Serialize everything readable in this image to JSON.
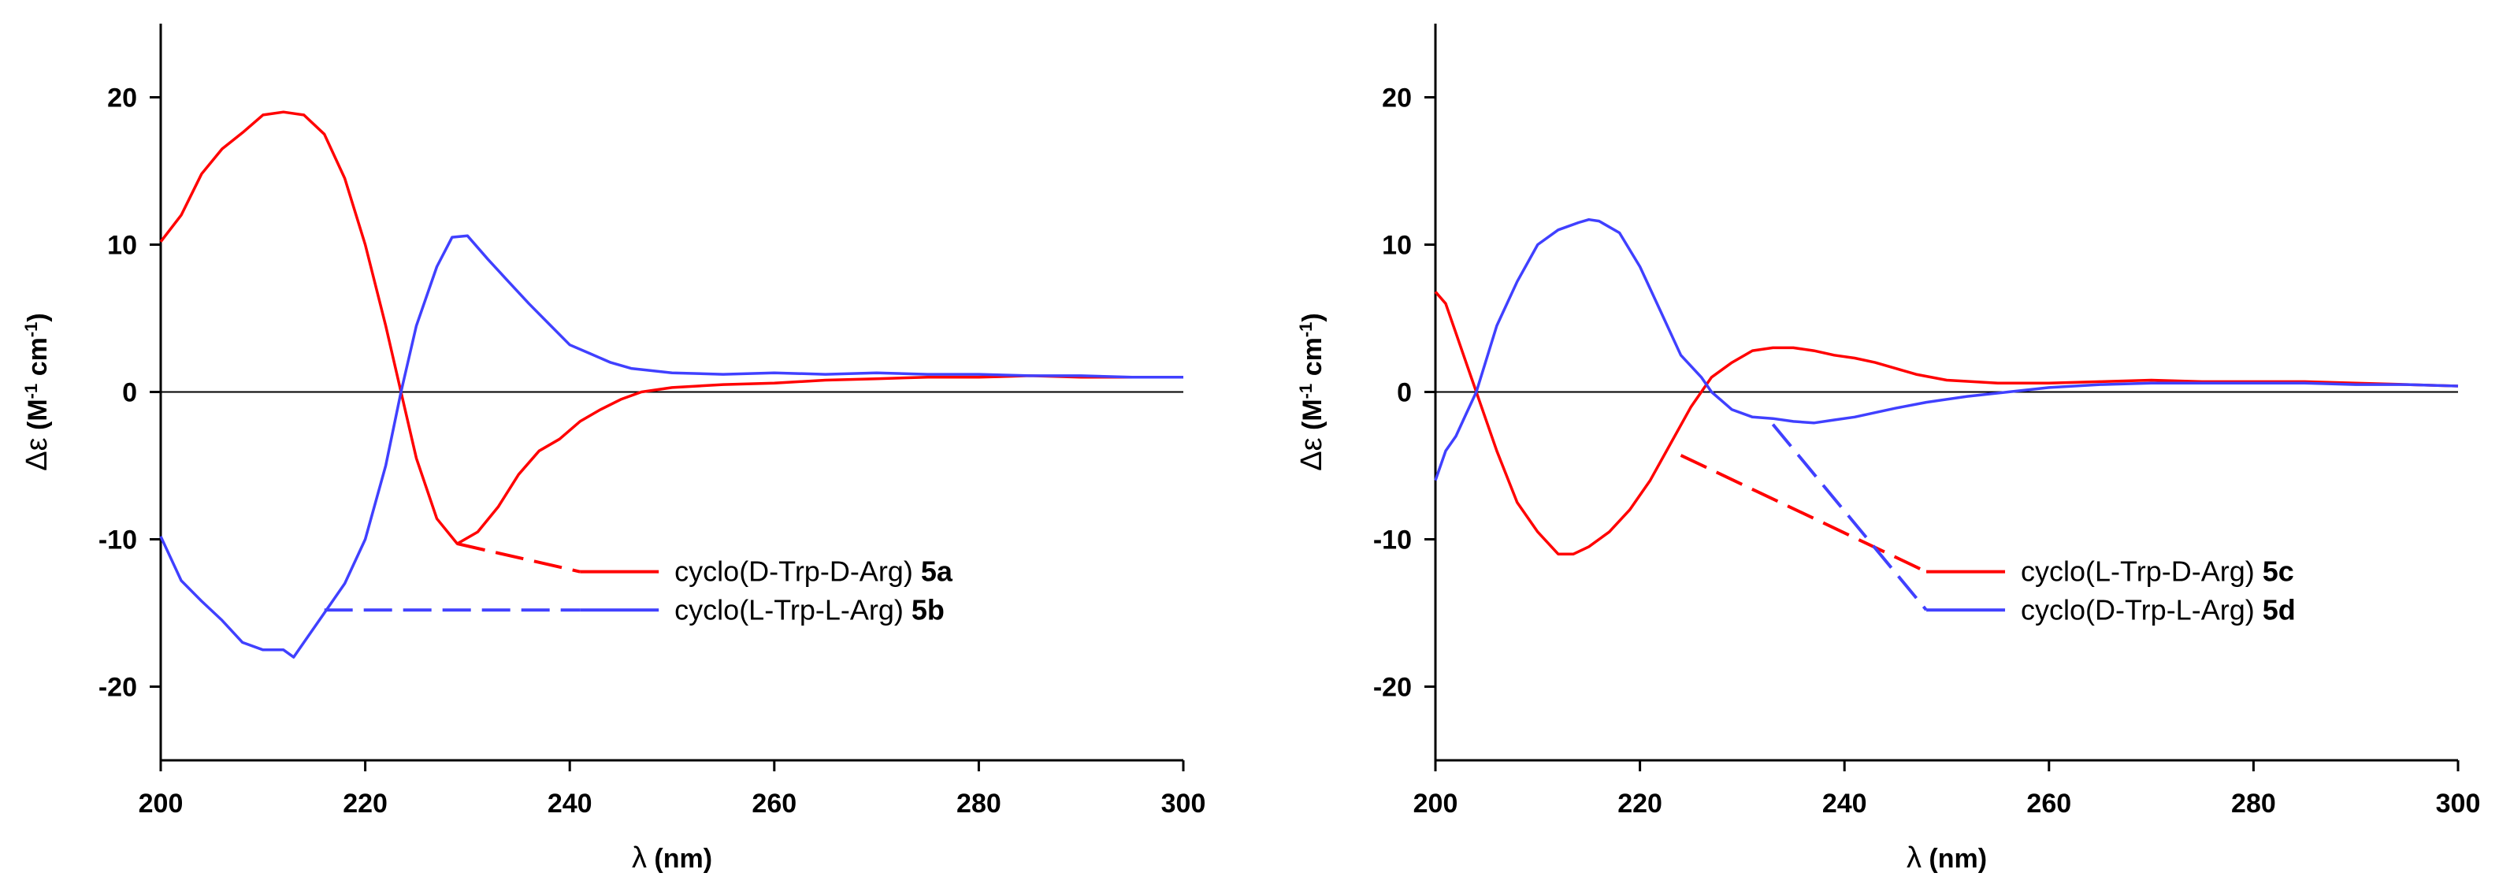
{
  "colors": {
    "red": "#ff0000",
    "blue": "#4040ff",
    "axis": "#000000",
    "background": "#ffffff"
  },
  "chart_data": [
    {
      "type": "line",
      "title": "",
      "xlabel": {
        "symbol": "λ",
        "unit": "(nm)"
      },
      "ylabel": {
        "symbol": "Δε",
        "unit_prefix": "(M",
        "exp1": "-1",
        "unit_mid": " cm",
        "exp2": "-1",
        "unit_suffix": ")"
      },
      "xlim": [
        200,
        300
      ],
      "ylim": [
        -25,
        25
      ],
      "xticks": [
        200,
        220,
        240,
        260,
        280,
        300
      ],
      "yticks": [
        -20,
        -10,
        0,
        10,
        20
      ],
      "xtick_labels": [
        "200",
        "220",
        "240",
        "260",
        "280",
        "300"
      ],
      "ytick_labels": [
        "-20",
        "-10",
        "0",
        "10",
        "20"
      ],
      "zero_line": true,
      "series": [
        {
          "name": "cyclo(D-Trp-D-Arg)",
          "compound": "5a",
          "color": "#ff0000",
          "x": [
            200,
            202,
            204,
            206,
            208,
            210,
            212,
            214,
            216,
            218,
            220,
            222,
            223.5,
            225,
            227,
            229,
            231,
            233,
            235,
            237,
            239,
            241,
            243,
            245,
            247,
            250,
            255,
            260,
            265,
            270,
            275,
            280,
            285,
            290,
            295,
            300
          ],
          "y": [
            10.2,
            12,
            14.8,
            16.5,
            17.6,
            18.8,
            19.0,
            18.8,
            17.5,
            14.5,
            10,
            4.5,
            0,
            -4.5,
            -8.6,
            -10.3,
            -9.5,
            -7.8,
            -5.6,
            -4,
            -3.2,
            -2,
            -1.2,
            -0.5,
            0,
            0.3,
            0.5,
            0.6,
            0.8,
            0.9,
            1.0,
            1.0,
            1.1,
            1.0,
            1.0,
            1.0
          ]
        },
        {
          "name": "cyclo(L-Trp-L-Arg)",
          "compound": "5b",
          "color": "#4040ff",
          "x": [
            200,
            202,
            204,
            206,
            208,
            210,
            212,
            213,
            214,
            216,
            218,
            220,
            222,
            223.5,
            225,
            227,
            228.5,
            230,
            232,
            234,
            236,
            238,
            240,
            242,
            244,
            246,
            250,
            255,
            260,
            265,
            270,
            275,
            280,
            285,
            290,
            295,
            300
          ],
          "y": [
            -9.8,
            -12.8,
            -14.2,
            -15.5,
            -17,
            -17.5,
            -17.5,
            -18,
            -17,
            -15,
            -13,
            -10,
            -5,
            0,
            4.5,
            8.5,
            10.5,
            10.6,
            9,
            7.5,
            6,
            4.6,
            3.2,
            2.6,
            2.0,
            1.6,
            1.3,
            1.2,
            1.3,
            1.2,
            1.3,
            1.2,
            1.2,
            1.1,
            1.1,
            1.0,
            1.0
          ]
        }
      ],
      "legend": [
        {
          "label": "cyclo(D-Trp-D-Arg)",
          "tag": "5a",
          "color": "#ff0000",
          "leader_from": [
            229,
            -10.3
          ],
          "leader_to": [
            241,
            -12.2
          ]
        },
        {
          "label": "cyclo(L-Trp-L-Arg)",
          "tag": "5b",
          "color": "#4040ff",
          "leader_from": [
            216,
            -14.8
          ],
          "leader_to": [
            241,
            -14.8
          ]
        }
      ]
    },
    {
      "type": "line",
      "title": "",
      "xlabel": {
        "symbol": "λ",
        "unit": "(nm)"
      },
      "ylabel": {
        "symbol": "Δε",
        "unit_prefix": "(M",
        "exp1": "-1",
        "unit_mid": " cm",
        "exp2": "-1",
        "unit_suffix": ")"
      },
      "xlim": [
        200,
        300
      ],
      "ylim": [
        -25,
        25
      ],
      "xticks": [
        200,
        220,
        240,
        260,
        280,
        300
      ],
      "yticks": [
        -20,
        -10,
        0,
        10,
        20
      ],
      "xtick_labels": [
        "200",
        "220",
        "240",
        "260",
        "280",
        "300"
      ],
      "ytick_labels": [
        "-20",
        "-10",
        "0",
        "10",
        "20"
      ],
      "zero_line": true,
      "series": [
        {
          "name": "cyclo(L-Trp-D-Arg)",
          "compound": "5c",
          "color": "#ff0000",
          "x": [
            200,
            201,
            202,
            203,
            204,
            206,
            208,
            210,
            212,
            213.5,
            215,
            217,
            219,
            221,
            223,
            225,
            227,
            229,
            231,
            233,
            235,
            237,
            239,
            241,
            243,
            245,
            247,
            250,
            255,
            260,
            265,
            270,
            275,
            280,
            285,
            290,
            295,
            300
          ],
          "y": [
            6.8,
            6,
            4,
            2,
            0,
            -4,
            -7.5,
            -9.5,
            -11,
            -11,
            -10.5,
            -9.5,
            -8,
            -6,
            -3.5,
            -1,
            1,
            2,
            2.8,
            3.0,
            3.0,
            2.8,
            2.5,
            2.3,
            2.0,
            1.6,
            1.2,
            0.8,
            0.6,
            0.6,
            0.7,
            0.8,
            0.7,
            0.7,
            0.7,
            0.6,
            0.5,
            0.4
          ]
        },
        {
          "name": "cyclo(D-Trp-L-Arg)",
          "compound": "5d",
          "color": "#4040ff",
          "x": [
            200,
            201,
            202,
            203,
            204,
            206,
            208,
            210,
            212,
            214,
            215,
            216,
            218,
            220,
            222,
            224,
            226,
            227,
            229,
            231,
            233,
            235,
            237,
            239,
            241,
            243,
            245,
            248,
            252,
            256,
            260,
            265,
            270,
            275,
            280,
            285,
            290,
            295,
            300
          ],
          "y": [
            -6,
            -4,
            -3,
            -1.5,
            0,
            4.5,
            7.5,
            10,
            11,
            11.5,
            11.7,
            11.6,
            10.8,
            8.5,
            5.5,
            2.5,
            1,
            0,
            -1.2,
            -1.7,
            -1.8,
            -2.0,
            -2.1,
            -1.9,
            -1.7,
            -1.4,
            -1.1,
            -0.7,
            -0.3,
            0,
            0.3,
            0.5,
            0.6,
            0.6,
            0.6,
            0.6,
            0.5,
            0.5,
            0.4
          ]
        }
      ],
      "legend": [
        {
          "label": "cyclo(L-Trp-D-Arg)",
          "tag": "5c",
          "color": "#ff0000",
          "leader_from": [
            224,
            -4.3
          ],
          "leader_to": [
            248,
            -12.2
          ]
        },
        {
          "label": "cyclo(D-Trp-L-Arg)",
          "tag": "5d",
          "color": "#4040ff",
          "leader_from": [
            233,
            -2.2
          ],
          "leader_to": [
            248,
            -14.8
          ]
        }
      ]
    }
  ]
}
